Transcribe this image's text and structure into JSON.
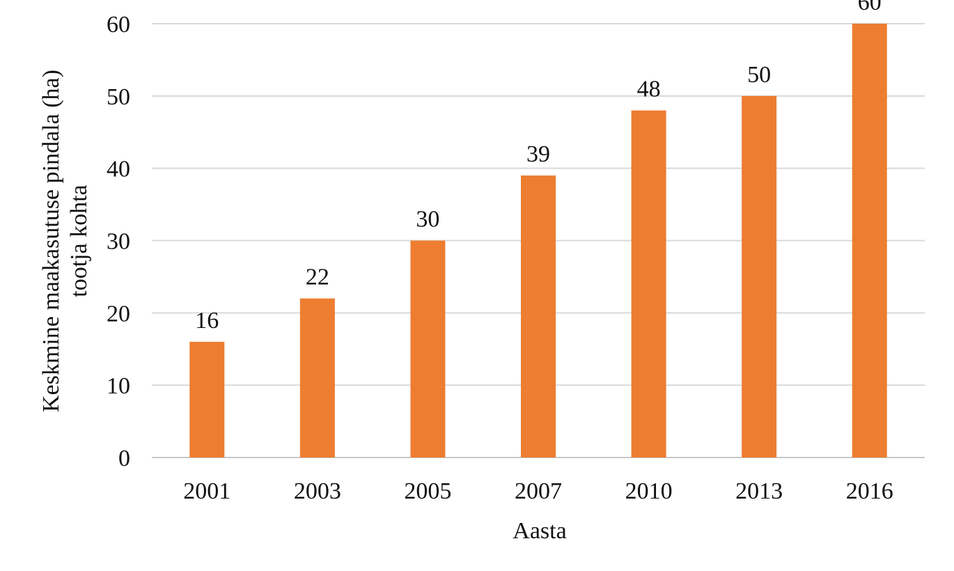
{
  "chart_data": {
    "type": "bar",
    "categories": [
      "2001",
      "2003",
      "2005",
      "2007",
      "2010",
      "2013",
      "2016"
    ],
    "values": [
      16,
      22,
      30,
      39,
      48,
      50,
      60
    ],
    "data_labels": [
      "16",
      "22",
      "30",
      "39",
      "48",
      "50",
      "60"
    ],
    "xlabel": "Aasta",
    "ylabel_lines": [
      "Keskmine maakasutuse pindala (ha)",
      "tootja kohta"
    ],
    "ylim": [
      0,
      60
    ],
    "yticks": [
      0,
      10,
      20,
      30,
      40,
      50,
      60
    ],
    "grid": true,
    "legend": "none",
    "bar_color": "#ED7D31"
  }
}
